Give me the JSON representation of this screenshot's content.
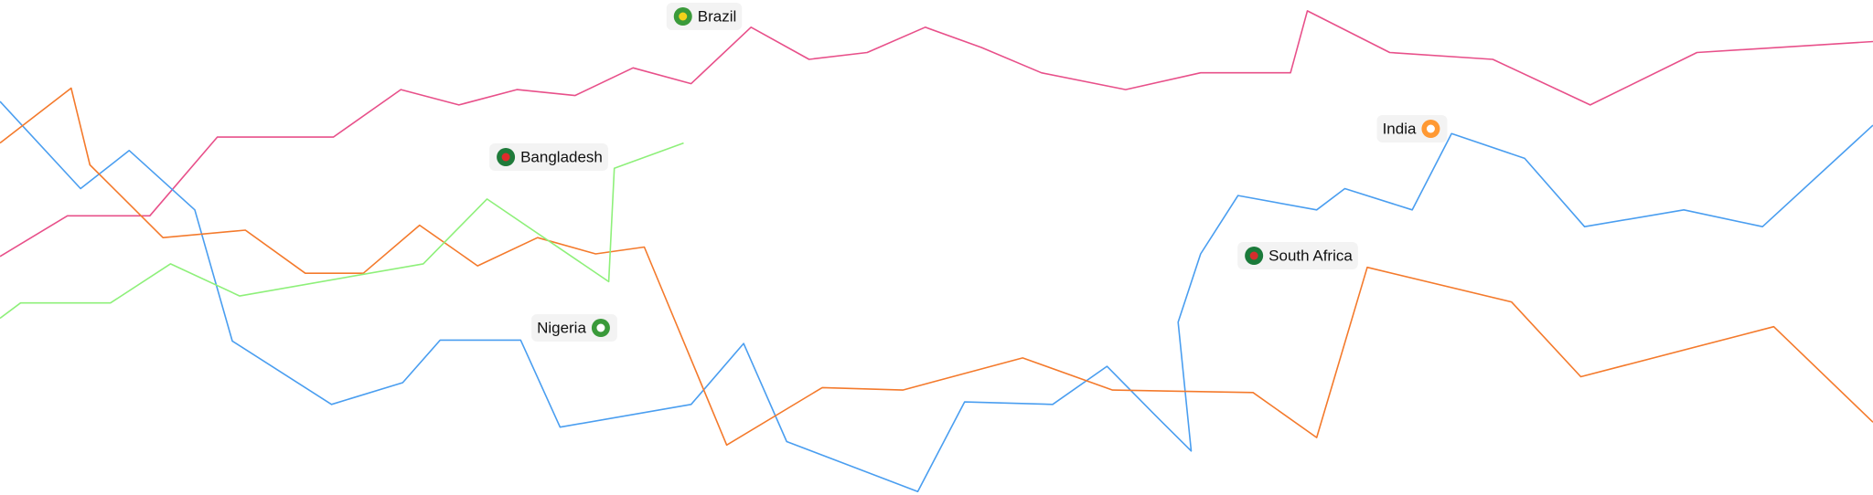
{
  "chart_data": {
    "type": "line",
    "xlim": [
      0,
      100
    ],
    "ylim": [
      0,
      100
    ],
    "series": [
      {
        "color": "#e8508a",
        "x": [
          0,
          3.6,
          8.0,
          11.6,
          17.8,
          21.4,
          24.5,
          27.6,
          30.7,
          33.8,
          36.9,
          40.1,
          43.2,
          46.3,
          49.4,
          52.4,
          55.6,
          60.1,
          64.1,
          68.9,
          69.8,
          74.2,
          79.7,
          84.9,
          90.6,
          100
        ],
        "values": [
          48.2,
          56.4,
          56.4,
          72.3,
          72.3,
          81.9,
          78.8,
          81.9,
          80.7,
          86.3,
          83.1,
          94.5,
          88.0,
          89.4,
          94.5,
          90.4,
          85.3,
          81.9,
          85.3,
          85.3,
          97.8,
          89.4,
          88.0,
          78.8,
          89.4,
          91.6
        ]
      },
      {
        "color": "#4a9ef0",
        "x": [
          0,
          4.3,
          6.9,
          10.4,
          12.4,
          17.7,
          21.5,
          23.5,
          27.8,
          29.9,
          36.9,
          39.7,
          42.0,
          49.0,
          51.5,
          56.2,
          59.1,
          61.6,
          63.6,
          62.9,
          64.1,
          66.1,
          70.3,
          71.8,
          75.4,
          77.5,
          81.4,
          84.6,
          89.9,
          94.1,
          100
        ],
        "values": [
          79.5,
          61.9,
          69.6,
          57.6,
          31.1,
          18.3,
          22.7,
          31.3,
          31.3,
          13.7,
          18.3,
          30.6,
          10.8,
          0.7,
          18.8,
          18.3,
          26.0,
          16.4,
          8.9,
          34.9,
          48.7,
          60.5,
          57.6,
          61.9,
          57.6,
          73.0,
          68.0,
          54.2,
          57.6,
          54.2,
          74.7
        ]
      },
      {
        "color": "#f47a2c",
        "x": [
          0,
          3.8,
          4.8,
          8.7,
          13.1,
          16.3,
          19.4,
          22.4,
          25.5,
          28.7,
          31.8,
          34.4,
          38.8,
          43.9,
          48.2,
          54.6,
          59.4,
          66.9,
          70.3,
          73.0,
          80.7,
          84.4,
          94.7,
          100
        ],
        "values": [
          71.1,
          82.2,
          66.7,
          52.0,
          53.5,
          44.8,
          44.8,
          54.5,
          46.3,
          52.0,
          48.7,
          50.1,
          10.1,
          21.7,
          21.2,
          27.7,
          21.2,
          20.7,
          11.6,
          46.0,
          39.0,
          23.9,
          34.0,
          14.7
        ]
      },
      {
        "color": "#8ef07a",
        "x": [
          0,
          1.1,
          5.9,
          9.1,
          12.8,
          22.6,
          26.0,
          32.5,
          32.8,
          36.5
        ],
        "values": [
          35.7,
          38.8,
          38.8,
          46.7,
          40.2,
          46.7,
          59.8,
          43.1,
          66.0,
          71.1
        ]
      }
    ],
    "annotations": [
      "Brazil",
      "Bangladesh",
      "Nigeria",
      "India",
      "South Africa"
    ]
  }
}
